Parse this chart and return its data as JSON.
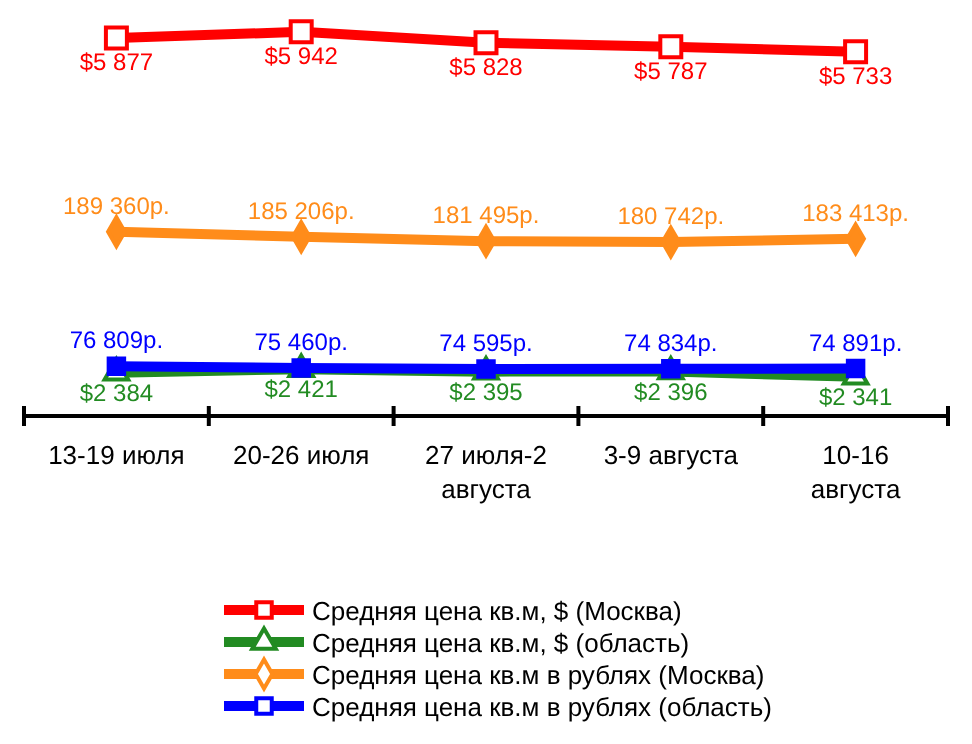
{
  "chart_data": {
    "type": "line",
    "categories": [
      "13-19 июля",
      "20-26 июля",
      "27 июля-2 августа",
      "3-9 августа",
      "10-16 августа"
    ],
    "series": [
      {
        "name": "Средняя цена кв.м, $ (Москва)",
        "color": "#ff0000",
        "marker": "square",
        "axis": "y",
        "values": [
          5877,
          5942,
          5828,
          5787,
          5733
        ],
        "value_labels": [
          "$5 877",
          "$5 942",
          "$5 828",
          "$5 787",
          "$5 733"
        ]
      },
      {
        "name": "Средняя цена кв.м, $ (область)",
        "color": "#228b22",
        "marker": "triangle",
        "axis": "y",
        "values": [
          2384,
          2421,
          2395,
          2396,
          2341
        ],
        "value_labels": [
          "$2 384",
          "$2 421",
          "$2 395",
          "$2 396",
          "$2 341"
        ]
      },
      {
        "name": "Средняя цена кв.м в рублях (Москва)",
        "color": "#ff8c1a",
        "marker": "diamond",
        "axis": "y2",
        "values": [
          189360,
          185206,
          181495,
          180742,
          183413
        ],
        "value_labels": [
          "189 360р.",
          "185 206р.",
          "181 495р.",
          "180 742р.",
          "183 413р."
        ]
      },
      {
        "name": "Средняя цена кв.м в рублях (область)",
        "color": "#0000ff",
        "marker": "square",
        "axis": "y2",
        "values": [
          76809,
          75460,
          74595,
          74834,
          74891
        ],
        "value_labels": [
          "76 809р.",
          "75 460р.",
          "74 595р.",
          "74 834р.",
          "74 891р."
        ]
      }
    ],
    "tick_labels": "x",
    "legend": "bottom",
    "line_style": "solid"
  }
}
